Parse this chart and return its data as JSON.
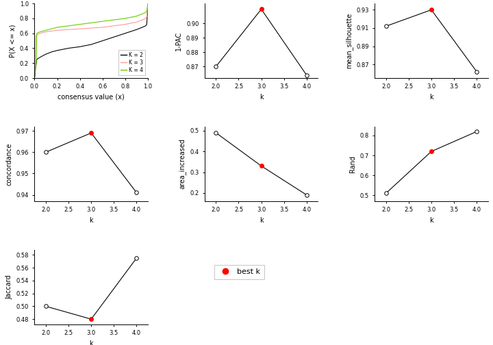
{
  "ecdf": {
    "k2": {
      "x": [
        0.0,
        0.005,
        0.01,
        0.015,
        0.02,
        0.05,
        0.1,
        0.15,
        0.2,
        0.3,
        0.4,
        0.5,
        0.6,
        0.7,
        0.8,
        0.9,
        0.95,
        0.98,
        0.99,
        1.0
      ],
      "y": [
        0.0,
        0.05,
        0.15,
        0.2,
        0.25,
        0.28,
        0.32,
        0.35,
        0.37,
        0.4,
        0.42,
        0.45,
        0.5,
        0.55,
        0.6,
        0.65,
        0.68,
        0.7,
        0.72,
        1.0
      ]
    },
    "k3": {
      "x": [
        0.0,
        0.005,
        0.01,
        0.015,
        0.02,
        0.05,
        0.1,
        0.15,
        0.2,
        0.3,
        0.4,
        0.5,
        0.6,
        0.7,
        0.8,
        0.9,
        0.95,
        0.98,
        0.99,
        1.0
      ],
      "y": [
        0.0,
        0.1,
        0.55,
        0.57,
        0.58,
        0.6,
        0.62,
        0.63,
        0.64,
        0.65,
        0.66,
        0.67,
        0.68,
        0.7,
        0.72,
        0.75,
        0.78,
        0.8,
        0.82,
        1.0
      ]
    },
    "k4": {
      "x": [
        0.0,
        0.005,
        0.01,
        0.015,
        0.02,
        0.05,
        0.1,
        0.15,
        0.2,
        0.3,
        0.4,
        0.5,
        0.6,
        0.7,
        0.8,
        0.9,
        0.95,
        0.98,
        0.99,
        1.0
      ],
      "y": [
        0.0,
        0.08,
        0.16,
        0.18,
        0.6,
        0.62,
        0.64,
        0.66,
        0.68,
        0.7,
        0.72,
        0.74,
        0.76,
        0.78,
        0.8,
        0.83,
        0.86,
        0.88,
        0.9,
        1.0
      ]
    },
    "colors": {
      "k2": "black",
      "k3": "#FF9999",
      "k4": "#66CC00"
    },
    "xlabel": "consensus value (x)",
    "ylabel": "P(X <= x)",
    "xlim": [
      0.0,
      1.0
    ],
    "ylim": [
      0.0,
      1.0
    ],
    "xticks": [
      0.0,
      0.2,
      0.4,
      0.6,
      0.8,
      1.0
    ],
    "yticks": [
      0.0,
      0.2,
      0.4,
      0.6,
      0.8,
      1.0
    ]
  },
  "pac": {
    "k": [
      2,
      3,
      4
    ],
    "y": [
      0.87,
      0.91,
      0.864
    ],
    "best_k": 3,
    "ylabel": "1-PAC",
    "xlabel": "k",
    "yticks": [
      0.87,
      0.88,
      0.89,
      0.9
    ],
    "ylim": [
      0.862,
      0.914
    ]
  },
  "silhouette": {
    "k": [
      2,
      3,
      4
    ],
    "y": [
      0.912,
      0.93,
      0.862
    ],
    "best_k": 3,
    "ylabel": "mean_silhouette",
    "xlabel": "k",
    "yticks": [
      0.87,
      0.89,
      0.91,
      0.93
    ],
    "ylim": [
      0.855,
      0.937
    ]
  },
  "concordance": {
    "k": [
      2,
      3,
      4
    ],
    "y": [
      0.96,
      0.969,
      0.941
    ],
    "best_k": 3,
    "ylabel": "concordance",
    "xlabel": "k",
    "yticks": [
      0.94,
      0.95,
      0.96,
      0.97
    ],
    "ylim": [
      0.937,
      0.972
    ]
  },
  "area_increased": {
    "k": [
      2,
      3,
      4
    ],
    "y": [
      0.49,
      0.33,
      0.19
    ],
    "best_k": 3,
    "ylabel": "area_increased",
    "xlabel": "k",
    "yticks": [
      0.2,
      0.3,
      0.4,
      0.5
    ],
    "ylim": [
      0.16,
      0.52
    ]
  },
  "rand": {
    "k": [
      2,
      3,
      4
    ],
    "y": [
      0.51,
      0.72,
      0.82
    ],
    "best_k": 3,
    "ylabel": "Rand",
    "xlabel": "k",
    "yticks": [
      0.5,
      0.6,
      0.7,
      0.8
    ],
    "ylim": [
      0.47,
      0.845
    ]
  },
  "jaccard": {
    "k": [
      2,
      3,
      4
    ],
    "y": [
      0.5,
      0.48,
      0.575
    ],
    "best_k": 3,
    "ylabel": "Jaccard",
    "xlabel": "k",
    "yticks": [
      0.48,
      0.5,
      0.52,
      0.54,
      0.56,
      0.58
    ],
    "ylim": [
      0.472,
      0.588
    ]
  },
  "legend_label": "best k",
  "dot_open_color": "white",
  "dot_closed_color": "red",
  "line_color": "black",
  "xtick_labels": [
    "2.0",
    "2.5",
    "3.0",
    "3.5",
    "4.0"
  ],
  "xticks_full": [
    2.0,
    2.5,
    3.0,
    3.5,
    4.0
  ]
}
